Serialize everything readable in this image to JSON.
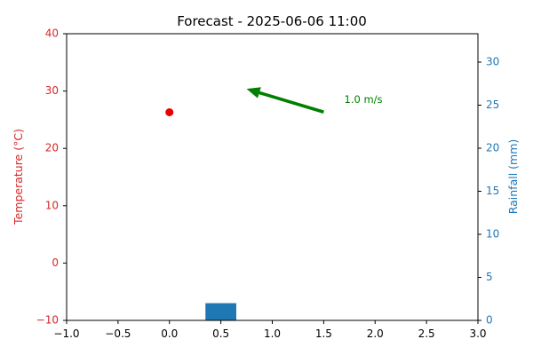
{
  "chart_data": {
    "type": "combo",
    "title": "Forecast - 2025-06-06 11:00",
    "x_axis": {
      "xlim": [
        -1.0,
        3.0
      ],
      "ticks": [
        -1.0,
        -0.5,
        0.0,
        0.5,
        1.0,
        1.5,
        2.0,
        2.5,
        3.0
      ],
      "tick_labels": [
        "−1.0",
        "−0.5",
        "0.0",
        "0.5",
        "1.0",
        "1.5",
        "2.0",
        "2.5",
        "3.0"
      ]
    },
    "left_axis": {
      "label": "Temperature (°C)",
      "ylim": [
        -10,
        40
      ],
      "ticks": [
        -10,
        0,
        10,
        20,
        30,
        40
      ],
      "tick_labels": [
        "−10",
        "0",
        "10",
        "20",
        "30",
        "40"
      ],
      "color": "#d62728"
    },
    "right_axis": {
      "label": "Rainfall (mm)",
      "ylim": [
        0,
        33.3
      ],
      "ticks": [
        0,
        5,
        10,
        15,
        20,
        25,
        30
      ],
      "tick_labels": [
        "0",
        "5",
        "10",
        "15",
        "20",
        "25",
        "30"
      ],
      "color": "#1f77b4"
    },
    "temperature": {
      "x": 0.0,
      "y": 26.3,
      "color": "#e60000"
    },
    "rainfall": {
      "x": 0.5,
      "value": 2.0,
      "width": 0.3,
      "color": "#1f77b4"
    },
    "wind": {
      "label": "1.0 m/s",
      "color": "#008000",
      "from": [
        1.5,
        24.2
      ],
      "to": [
        0.75,
        26.9
      ],
      "label_pos": [
        1.7,
        25.6
      ]
    },
    "grid": false,
    "legend": "none"
  }
}
